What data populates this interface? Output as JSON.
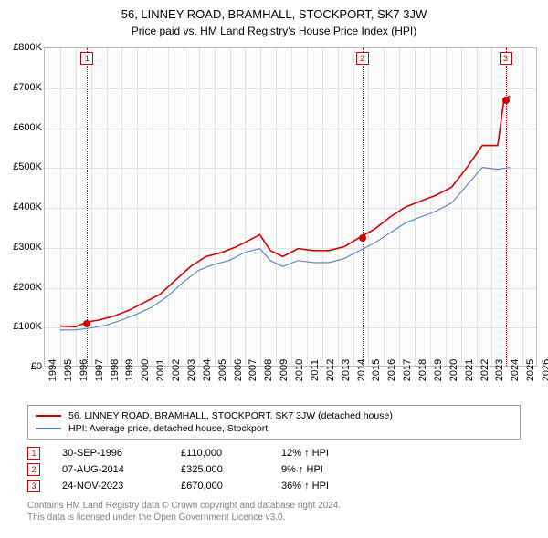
{
  "title": "56, LINNEY ROAD, BRAMHALL, STOCKPORT, SK7 3JW",
  "subtitle": "Price paid vs. HM Land Registry's House Price Index (HPI)",
  "chart": {
    "type": "line",
    "background_color": "#fbfbfb",
    "grid_color": "#e2e2e2",
    "border_color": "#bbbbbb",
    "x_range": [
      1994,
      2026
    ],
    "y_range": [
      0,
      800
    ],
    "y_ticks": [
      0,
      100,
      200,
      300,
      400,
      500,
      600,
      700,
      800
    ],
    "y_tick_labels": [
      "£0",
      "£100K",
      "£200K",
      "£300K",
      "£400K",
      "£500K",
      "£600K",
      "£700K",
      "£800K"
    ],
    "x_ticks": [
      1994,
      1995,
      1996,
      1997,
      1998,
      1999,
      2000,
      2001,
      2002,
      2003,
      2004,
      2005,
      2006,
      2007,
      2008,
      2009,
      2010,
      2011,
      2012,
      2013,
      2014,
      2015,
      2016,
      2017,
      2018,
      2019,
      2020,
      2021,
      2022,
      2023,
      2024,
      2025,
      2026
    ],
    "series": [
      {
        "name": "56, LINNEY ROAD, BRAMHALL, STOCKPORT, SK7 3JW (detached house)",
        "color": "#d00000",
        "line_width": 1.6,
        "data": [
          [
            1995.0,
            100
          ],
          [
            1996.0,
            98
          ],
          [
            1996.75,
            110
          ],
          [
            1997.5,
            115
          ],
          [
            1998.5,
            125
          ],
          [
            1999.5,
            140
          ],
          [
            2000.5,
            160
          ],
          [
            2001.5,
            180
          ],
          [
            2002.5,
            215
          ],
          [
            2003.5,
            250
          ],
          [
            2004.5,
            275
          ],
          [
            2005.5,
            285
          ],
          [
            2006.5,
            300
          ],
          [
            2007.5,
            320
          ],
          [
            2008.0,
            330
          ],
          [
            2008.7,
            290
          ],
          [
            2009.5,
            275
          ],
          [
            2010.5,
            295
          ],
          [
            2011.5,
            290
          ],
          [
            2012.5,
            290
          ],
          [
            2013.5,
            300
          ],
          [
            2014.6,
            325
          ],
          [
            2015.5,
            345
          ],
          [
            2016.5,
            375
          ],
          [
            2017.5,
            400
          ],
          [
            2018.5,
            415
          ],
          [
            2019.5,
            430
          ],
          [
            2020.5,
            450
          ],
          [
            2021.5,
            500
          ],
          [
            2022.5,
            555
          ],
          [
            2023.5,
            555
          ],
          [
            2023.9,
            670
          ],
          [
            2024.3,
            680
          ]
        ]
      },
      {
        "name": "HPI: Average price, detached house, Stockport",
        "color": "#5080c0",
        "line_width": 1.1,
        "data": [
          [
            1995.0,
            90
          ],
          [
            1996.0,
            90
          ],
          [
            1997.0,
            95
          ],
          [
            1998.0,
            102
          ],
          [
            1999.0,
            115
          ],
          [
            2000.0,
            130
          ],
          [
            2001.0,
            148
          ],
          [
            2002.0,
            175
          ],
          [
            2003.0,
            210
          ],
          [
            2004.0,
            240
          ],
          [
            2005.0,
            255
          ],
          [
            2006.0,
            265
          ],
          [
            2007.0,
            285
          ],
          [
            2008.0,
            295
          ],
          [
            2008.7,
            265
          ],
          [
            2009.5,
            250
          ],
          [
            2010.5,
            265
          ],
          [
            2011.5,
            260
          ],
          [
            2012.5,
            260
          ],
          [
            2013.5,
            270
          ],
          [
            2014.5,
            290
          ],
          [
            2015.5,
            310
          ],
          [
            2016.5,
            335
          ],
          [
            2017.5,
            360
          ],
          [
            2018.5,
            375
          ],
          [
            2019.5,
            390
          ],
          [
            2020.5,
            410
          ],
          [
            2021.5,
            455
          ],
          [
            2022.5,
            500
          ],
          [
            2023.5,
            495
          ],
          [
            2024.3,
            500
          ]
        ]
      }
    ],
    "markers": [
      {
        "id": "1",
        "x": 1996.75,
        "y": 110
      },
      {
        "id": "2",
        "x": 2014.6,
        "y": 325
      },
      {
        "id": "3",
        "x": 2023.9,
        "y": 670
      }
    ]
  },
  "legend": {
    "items": [
      {
        "color": "#d00000",
        "label": "56, LINNEY ROAD, BRAMHALL, STOCKPORT, SK7 3JW (detached house)"
      },
      {
        "color": "#5080c0",
        "label": "HPI: Average price, detached house, Stockport"
      }
    ]
  },
  "sales": [
    {
      "id": "1",
      "date": "30-SEP-1996",
      "price": "£110,000",
      "delta": "12% ↑ HPI"
    },
    {
      "id": "2",
      "date": "07-AUG-2014",
      "price": "£325,000",
      "delta": "9% ↑ HPI"
    },
    {
      "id": "3",
      "date": "24-NOV-2023",
      "price": "£670,000",
      "delta": "36% ↑ HPI"
    }
  ],
  "footer": {
    "line1": "Contains HM Land Registry data © Crown copyright and database right 2024.",
    "line2": "This data is licensed under the Open Government Licence v3.0."
  }
}
